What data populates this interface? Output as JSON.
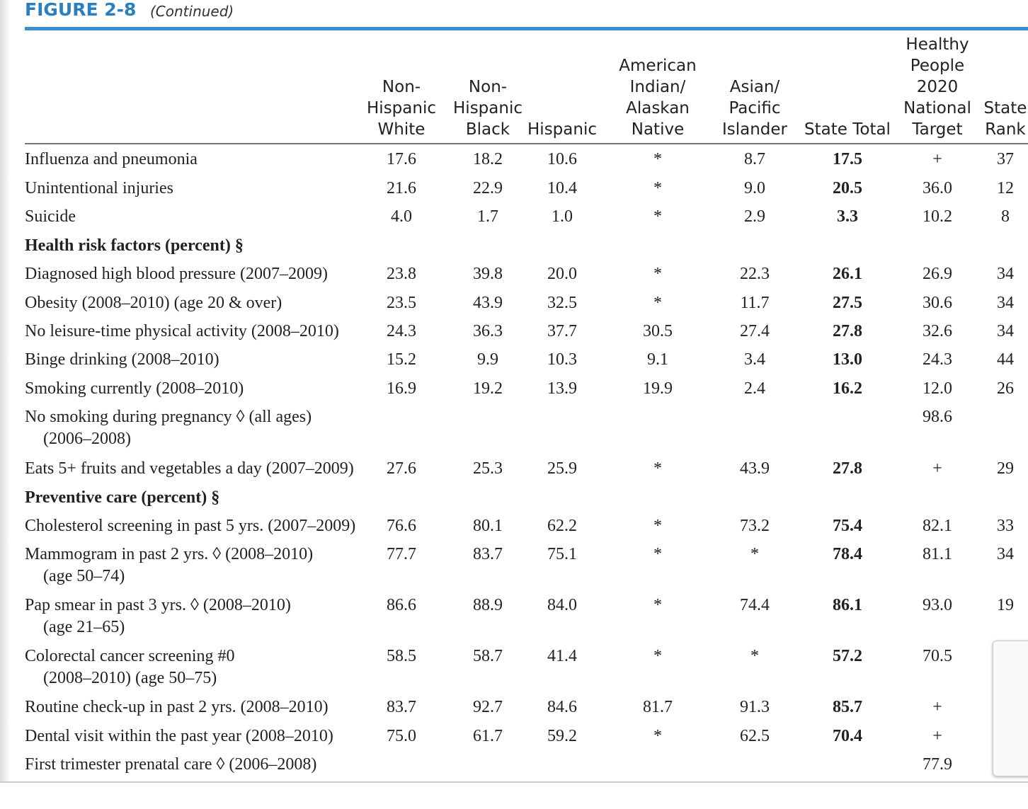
{
  "header": {
    "title": "FIGURE 2-8",
    "subtitle": "(Continued)"
  },
  "table": {
    "columns": [
      [
        "Non-",
        "Hispanic",
        "White"
      ],
      [
        "Non-",
        "Hispanic",
        "Black"
      ],
      [
        "Hispanic"
      ],
      [
        "American",
        "Indian/",
        "Alaskan",
        "Native"
      ],
      [
        "Asian/",
        "Pacific",
        "Islander"
      ],
      [
        "State Total"
      ],
      [
        "Healthy",
        "People",
        "2020",
        "National",
        "Target"
      ],
      [
        "State",
        "Rank"
      ]
    ],
    "rows": [
      {
        "label": [
          "Influenza and pneumonia"
        ],
        "values": [
          "17.6",
          "18.2",
          "10.6",
          "*",
          "8.7",
          "17.5",
          "+",
          "37"
        ]
      },
      {
        "label": [
          "Unintentional injuries"
        ],
        "values": [
          "21.6",
          "22.9",
          "10.4",
          "*",
          "9.0",
          "20.5",
          "36.0",
          "12"
        ]
      },
      {
        "label": [
          "Suicide"
        ],
        "values": [
          "4.0",
          "1.7",
          "1.0",
          "*",
          "2.9",
          "3.3",
          "10.2",
          "8"
        ]
      },
      {
        "label": [
          "Health risk factors (percent) §"
        ]
      },
      {
        "label": [
          "Diagnosed high blood pressure (2007–2009)"
        ],
        "values": [
          "23.8",
          "39.8",
          "20.0",
          "*",
          "22.3",
          "26.1",
          "26.9",
          "34"
        ]
      },
      {
        "label": [
          "Obesity (2008–2010) (age 20 & over)"
        ],
        "values": [
          "23.5",
          "43.9",
          "32.5",
          "*",
          "11.7",
          "27.5",
          "30.6",
          "34"
        ]
      },
      {
        "label": [
          "No leisure-time physical activity (2008–2010)"
        ],
        "values": [
          "24.3",
          "36.3",
          "37.7",
          "30.5",
          "27.4",
          "27.8",
          "32.6",
          "34"
        ]
      },
      {
        "label": [
          "Binge drinking (2008–2010)"
        ],
        "values": [
          "15.2",
          "9.9",
          "10.3",
          "9.1",
          "3.4",
          "13.0",
          "24.3",
          "44"
        ]
      },
      {
        "label": [
          "Smoking currently (2008–2010)"
        ],
        "values": [
          "16.9",
          "19.2",
          "13.9",
          "19.9",
          "2.4",
          "16.2",
          "12.0",
          "26"
        ]
      },
      {
        "label": [
          "No smoking during pregnancy ◊ (all ages)",
          "(2006–2008)"
        ],
        "values": [
          null,
          null,
          null,
          null,
          null,
          null,
          "98.6",
          null
        ]
      },
      {
        "label": [
          "Eats 5+ fruits and vegetables a day (2007–2009)"
        ],
        "values": [
          "27.6",
          "25.3",
          "25.9",
          "*",
          "43.9",
          "27.8",
          "+",
          "29"
        ]
      },
      {
        "label": [
          "Preventive care (percent) §"
        ]
      },
      {
        "label": [
          "Cholesterol screening in past 5 yrs. (2007–2009)"
        ],
        "values": [
          "76.6",
          "80.1",
          "62.2",
          "*",
          "73.2",
          "75.4",
          "82.1",
          "33"
        ]
      },
      {
        "label": [
          "Mammogram in past 2 yrs. ◊ (2008–2010)",
          "(age 50–74)"
        ],
        "values": [
          "77.7",
          "83.7",
          "75.1",
          "*",
          "*",
          "78.4",
          "81.1",
          "34"
        ]
      },
      {
        "label": [
          "Pap smear in past 3 yrs. ◊ (2008–2010)",
          "(age 21–65)"
        ],
        "values": [
          "86.6",
          "88.9",
          "84.0",
          "*",
          "74.4",
          "86.1",
          "93.0",
          "19"
        ]
      },
      {
        "label": [
          "Colorectal cancer screening #0",
          "(2008–2010) (age 50–75)"
        ],
        "values": [
          "58.5",
          "58.7",
          "41.4",
          "*",
          "*",
          "57.2",
          "70.5",
          null
        ]
      },
      {
        "label": [
          "Routine check-up in past 2 yrs. (2008–2010)"
        ],
        "values": [
          "83.7",
          "92.7",
          "84.6",
          "81.7",
          "91.3",
          "85.7",
          "+",
          null
        ]
      },
      {
        "label": [
          "Dental visit within the past year (2008–2010)"
        ],
        "values": [
          "75.0",
          "61.7",
          "59.2",
          "*",
          "62.5",
          "70.4",
          "+",
          null
        ]
      },
      {
        "label": [
          "First trimester prenatal care ◊ (2006–2008)"
        ],
        "values": [
          null,
          null,
          null,
          null,
          null,
          null,
          "77.9",
          null
        ]
      }
    ]
  }
}
